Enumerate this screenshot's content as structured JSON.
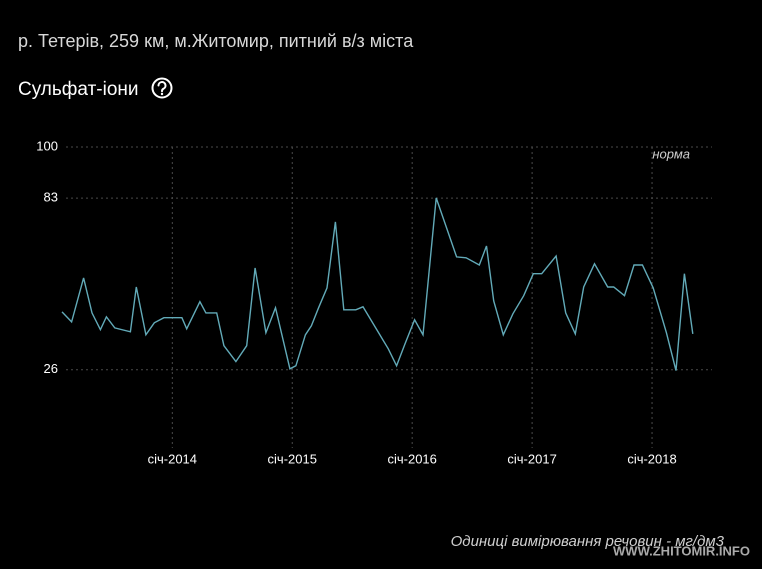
{
  "header": {
    "title": "р. Тетерів, 259 км, м.Житомир, питний в/з міста",
    "watermark": "WWW.ZHITOMIR.INFO"
  },
  "chart_data": {
    "type": "line",
    "title": "Сульфат-іони",
    "annotation": "норма",
    "footnote": "Одиниці вимірювання речовин - мг/дм3",
    "x": [
      2013.08,
      2013.16,
      2013.26,
      2013.33,
      2013.4,
      2013.45,
      2013.52,
      2013.65,
      2013.7,
      2013.78,
      2013.85,
      2013.93,
      2014.08,
      2014.12,
      2014.23,
      2014.28,
      2014.37,
      2014.43,
      2014.53,
      2014.62,
      2014.69,
      2014.78,
      2014.86,
      2014.98,
      2015.03,
      2015.11,
      2015.16,
      2015.22,
      2015.29,
      2015.36,
      2015.43,
      2015.53,
      2015.59,
      2015.8,
      2015.87,
      2015.94,
      2016.02,
      2016.09,
      2016.2,
      2016.37,
      2016.45,
      2016.56,
      2016.62,
      2016.68,
      2016.76,
      2016.84,
      2016.93,
      2017.01,
      2017.08,
      2017.2,
      2017.28,
      2017.36,
      2017.43,
      2017.52,
      2017.63,
      2017.68,
      2017.77,
      2017.85,
      2017.92,
      2018.01,
      2018.12,
      2018.2,
      2018.27,
      2018.34
    ],
    "series": [
      {
        "name": "Сульфат-іони",
        "color": "#62aab8",
        "values": [
          45.2,
          41.9,
          56.5,
          44.9,
          39.3,
          43.6,
          39.9,
          38.6,
          53.5,
          37.6,
          41.6,
          43.3,
          43.3,
          39.6,
          48.6,
          44.9,
          44.9,
          34.0,
          28.7,
          34.0,
          59.8,
          38.3,
          46.6,
          26.3,
          27.3,
          37.6,
          40.6,
          46.6,
          53.2,
          75.1,
          45.9,
          45.9,
          46.9,
          33.0,
          27.3,
          34.6,
          42.6,
          37.6,
          83.1,
          63.5,
          63.2,
          60.8,
          67.1,
          48.9,
          37.6,
          44.6,
          50.6,
          57.9,
          57.9,
          63.8,
          44.9,
          37.9,
          53.5,
          61.2,
          53.5,
          53.5,
          50.6,
          60.8,
          60.8,
          53.2,
          38.3,
          25.7,
          57.9,
          37.9
        ]
      }
    ],
    "xlim": [
      2012.98,
      2018.5
    ],
    "xticks": [
      {
        "value": 2014,
        "label": "січ-2014"
      },
      {
        "value": 2015,
        "label": "січ-2015"
      },
      {
        "value": 2016,
        "label": "січ-2016"
      },
      {
        "value": 2017,
        "label": "січ-2017"
      },
      {
        "value": 2018,
        "label": "січ-2018"
      }
    ],
    "ylim": [
      0,
      100
    ],
    "yticks": [
      26,
      83,
      100
    ],
    "grid": true
  }
}
